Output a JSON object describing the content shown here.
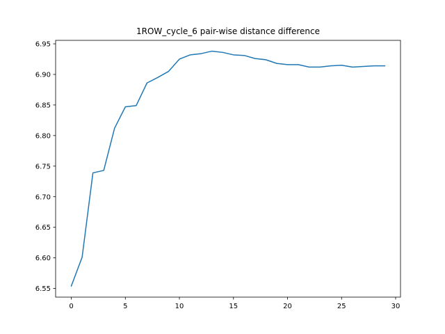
{
  "chart_data": {
    "type": "line",
    "title": "1ROW_cycle_6 pair-wise distance difference",
    "xlabel": "",
    "ylabel": "",
    "xlim": [
      -1.45,
      30.45
    ],
    "ylim": [
      6.5358,
      6.9557
    ],
    "x_ticks": [
      0,
      5,
      10,
      15,
      20,
      25,
      30
    ],
    "x_tick_labels": [
      "0",
      "5",
      "10",
      "15",
      "20",
      "25",
      "30"
    ],
    "y_ticks": [
      6.55,
      6.6,
      6.65,
      6.7,
      6.75,
      6.8,
      6.85,
      6.9,
      6.95
    ],
    "y_tick_labels": [
      "6.55",
      "6.60",
      "6.65",
      "6.70",
      "6.75",
      "6.80",
      "6.85",
      "6.90",
      "6.95"
    ],
    "grid": false,
    "series": [
      {
        "color": "#1f77b4",
        "x": [
          0,
          1,
          2,
          3,
          4,
          5,
          6,
          7,
          8,
          9,
          10,
          11,
          12,
          13,
          14,
          15,
          16,
          17,
          18,
          19,
          20,
          21,
          22,
          23,
          24,
          25,
          26,
          27,
          28,
          29
        ],
        "values": [
          6.554,
          6.601,
          6.739,
          6.743,
          6.812,
          6.847,
          6.849,
          6.886,
          6.895,
          6.905,
          6.925,
          6.932,
          6.934,
          6.938,
          6.936,
          6.932,
          6.931,
          6.926,
          6.924,
          6.918,
          6.916,
          6.916,
          6.912,
          6.912,
          6.914,
          6.915,
          6.912,
          6.913,
          6.914,
          6.914
        ]
      }
    ]
  }
}
